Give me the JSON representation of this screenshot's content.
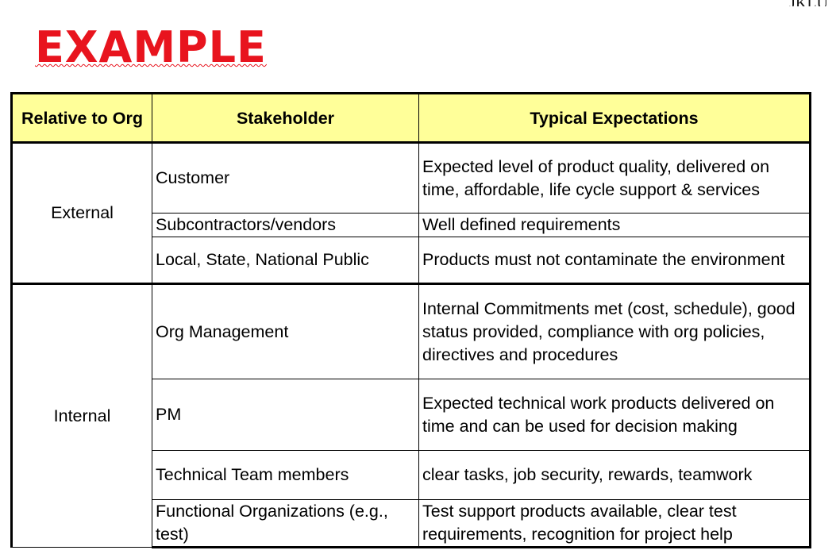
{
  "header": {
    "corner_text": "JKLU",
    "title": "EXAMPLE"
  },
  "table": {
    "columns": [
      "Relative to Org",
      "Stakeholder",
      "Typical Expectations"
    ],
    "groups": [
      {
        "relative": "External",
        "rows": [
          {
            "stakeholder": "Customer",
            "expectations": "Expected level of product quality, delivered on time, affordable, life cycle support & services"
          },
          {
            "stakeholder": "Subcontractors/vendors",
            "expectations": "Well defined requirements"
          },
          {
            "stakeholder": "Local, State, National Public",
            "expectations": "Products must not contaminate the environment"
          }
        ]
      },
      {
        "relative": "Internal",
        "rows": [
          {
            "stakeholder": "Org Management",
            "expectations": "Internal Commitments met (cost, schedule), good status provided, compliance with org policies, directives and procedures"
          },
          {
            "stakeholder": "PM",
            "expectations": "Expected technical work products delivered on time and can be used for decision making"
          },
          {
            "stakeholder": "Technical Team members",
            "expectations": "clear tasks, job security, rewards, teamwork"
          },
          {
            "stakeholder": "Functional Organizations (e.g., test)",
            "expectations": "Test support products available, clear test requirements, recognition for project help"
          }
        ]
      }
    ]
  }
}
